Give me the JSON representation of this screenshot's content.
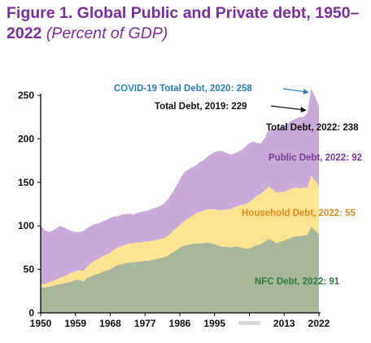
{
  "chart_data": {
    "type": "area",
    "title": "Figure 1. Global Public and Private debt, 1950–2022",
    "subtitle": "(Percent of GDP)",
    "xlabel": "",
    "ylabel": "",
    "xlim": [
      1950,
      2022
    ],
    "ylim": [
      0,
      250
    ],
    "x_ticks": [
      "1950",
      "1959",
      "1968",
      "1977",
      "1986",
      "1995",
      "",
      "2013",
      "2022"
    ],
    "y_ticks": [
      "0",
      "50",
      "100",
      "150",
      "200",
      "250"
    ],
    "stacked": true,
    "x": [
      1950,
      1951,
      1952,
      1953,
      1954,
      1955,
      1956,
      1957,
      1958,
      1959,
      1960,
      1961,
      1962,
      1963,
      1964,
      1965,
      1966,
      1967,
      1968,
      1969,
      1970,
      1971,
      1972,
      1973,
      1974,
      1975,
      1976,
      1977,
      1978,
      1979,
      1980,
      1981,
      1982,
      1983,
      1984,
      1985,
      1986,
      1987,
      1988,
      1989,
      1990,
      1991,
      1992,
      1993,
      1994,
      1995,
      1996,
      1997,
      1998,
      1999,
      2000,
      2001,
      2002,
      2003,
      2004,
      2005,
      2006,
      2007,
      2008,
      2009,
      2010,
      2011,
      2012,
      2013,
      2014,
      2015,
      2016,
      2017,
      2018,
      2019,
      2020,
      2021,
      2022
    ],
    "series": [
      {
        "name": "NFC Debt",
        "color": "#a8b69a",
        "values": [
          29,
          29,
          30,
          31,
          32,
          33,
          34,
          35,
          36,
          38,
          38,
          36,
          40,
          42,
          44,
          45,
          47,
          49,
          50,
          53,
          55,
          56,
          57,
          58,
          58,
          59,
          59,
          60,
          60,
          61,
          62,
          63,
          64,
          66,
          69,
          72,
          75,
          77,
          78,
          79,
          80,
          80,
          80,
          81,
          80,
          79,
          77,
          76,
          76,
          75,
          76,
          76,
          75,
          74,
          74,
          76,
          78,
          79,
          82,
          85,
          83,
          80,
          82,
          83,
          85,
          87,
          88,
          88,
          89,
          89,
          99,
          95,
          91
        ]
      },
      {
        "name": "Household Debt",
        "color": "#fde392",
        "values": [
          4,
          4,
          5,
          5,
          6,
          7,
          8,
          9,
          10,
          10,
          11,
          12,
          13,
          15,
          16,
          17,
          18,
          18,
          19,
          20,
          20,
          21,
          21,
          22,
          22,
          22,
          22,
          22,
          22,
          22,
          22,
          22,
          22,
          23,
          24,
          25,
          26,
          28,
          30,
          32,
          34,
          36,
          37,
          38,
          39,
          40,
          41,
          42,
          43,
          44,
          45,
          47,
          49,
          51,
          53,
          55,
          57,
          58,
          59,
          60,
          59,
          58,
          57,
          56,
          56,
          56,
          56,
          55,
          55,
          55,
          59,
          57,
          55
        ]
      },
      {
        "name": "Public Debt",
        "color": "#c8abd8",
        "values": [
          67,
          62,
          58,
          58,
          59,
          60,
          56,
          52,
          48,
          45,
          44,
          46,
          44,
          43,
          42,
          41,
          40,
          40,
          40,
          38,
          36,
          36,
          35,
          34,
          33,
          34,
          35,
          35,
          36,
          37,
          37,
          38,
          40,
          42,
          45,
          48,
          52,
          56,
          56,
          56,
          55,
          57,
          58,
          60,
          63,
          66,
          68,
          68,
          65,
          63,
          62,
          62,
          63,
          66,
          68,
          66,
          60,
          58,
          60,
          66,
          70,
          73,
          74,
          76,
          77,
          78,
          79,
          82,
          81,
          85,
          100,
          96,
          92
        ]
      }
    ],
    "annotations": [
      {
        "text": "COVID-19 Total Debt, 2020: 258",
        "color": "#2e7fb5",
        "x": 2020,
        "y": 258
      },
      {
        "text": "Total Debt, 2019: 229",
        "color": "#111111",
        "x": 2019,
        "y": 229
      },
      {
        "text": "Total Debt, 2022: 238",
        "color": "#111111",
        "x": 2022,
        "y": 238
      },
      {
        "text": "Public Debt, 2022: 92",
        "color": "#7b3a9c"
      },
      {
        "text": "Household Debt, 2022: 55",
        "color": "#e08a1e"
      },
      {
        "text": "NFC Debt, 2022: 91",
        "color": "#2e7b3c"
      }
    ]
  }
}
